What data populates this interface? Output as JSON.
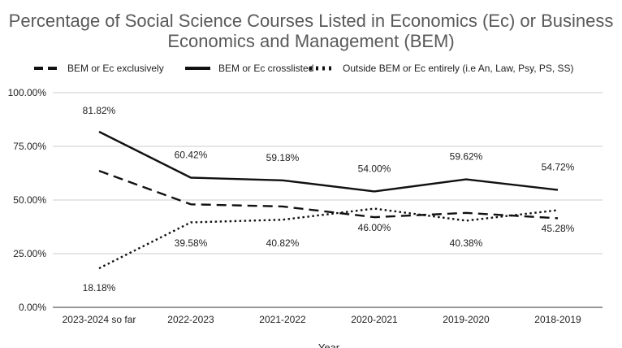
{
  "chart_data": {
    "type": "line",
    "title_line1": "Percentage of Social Science Courses Listed in Economics (Ec) or Business",
    "title_line2": "Economics and Management (BEM)",
    "xlabel": "Year",
    "ylabel": "",
    "categories": [
      "2023-2024 so far",
      "2022-2023",
      "2021-2022",
      "2020-2021",
      "2019-2020",
      "2018-2019"
    ],
    "ylim": [
      0,
      100
    ],
    "y_ticks": [
      "0.00%",
      "25.00%",
      "50.00%",
      "75.00%",
      "100.00%"
    ],
    "grid": true,
    "legend_position": "top",
    "series": [
      {
        "name": "BEM or Ec exclusively",
        "line_style": "dashed",
        "values": [
          63.6,
          48.0,
          47.0,
          42.0,
          44.0,
          41.5
        ],
        "labels": [
          "",
          "",
          "",
          "",
          "",
          ""
        ]
      },
      {
        "name": "BEM or Ec crosslisted",
        "line_style": "solid",
        "values": [
          81.82,
          60.42,
          59.18,
          54.0,
          59.62,
          54.72
        ],
        "labels": [
          "81.82%",
          "60.42%",
          "59.18%",
          "54.00%",
          "59.62%",
          "54.72%"
        ]
      },
      {
        "name": "Outside BEM or Ec entirely (i.e An, Law, Psy, PS, SS)",
        "line_style": "dotted",
        "values": [
          18.18,
          39.58,
          40.82,
          46.0,
          40.38,
          45.28
        ],
        "labels": [
          "18.18%",
          "39.58%",
          "40.82%",
          "46.00%",
          "40.38%",
          "45.28%"
        ]
      }
    ],
    "colors": {
      "line": "#111111",
      "grid": "#cccccc",
      "title": "#595959"
    }
  }
}
